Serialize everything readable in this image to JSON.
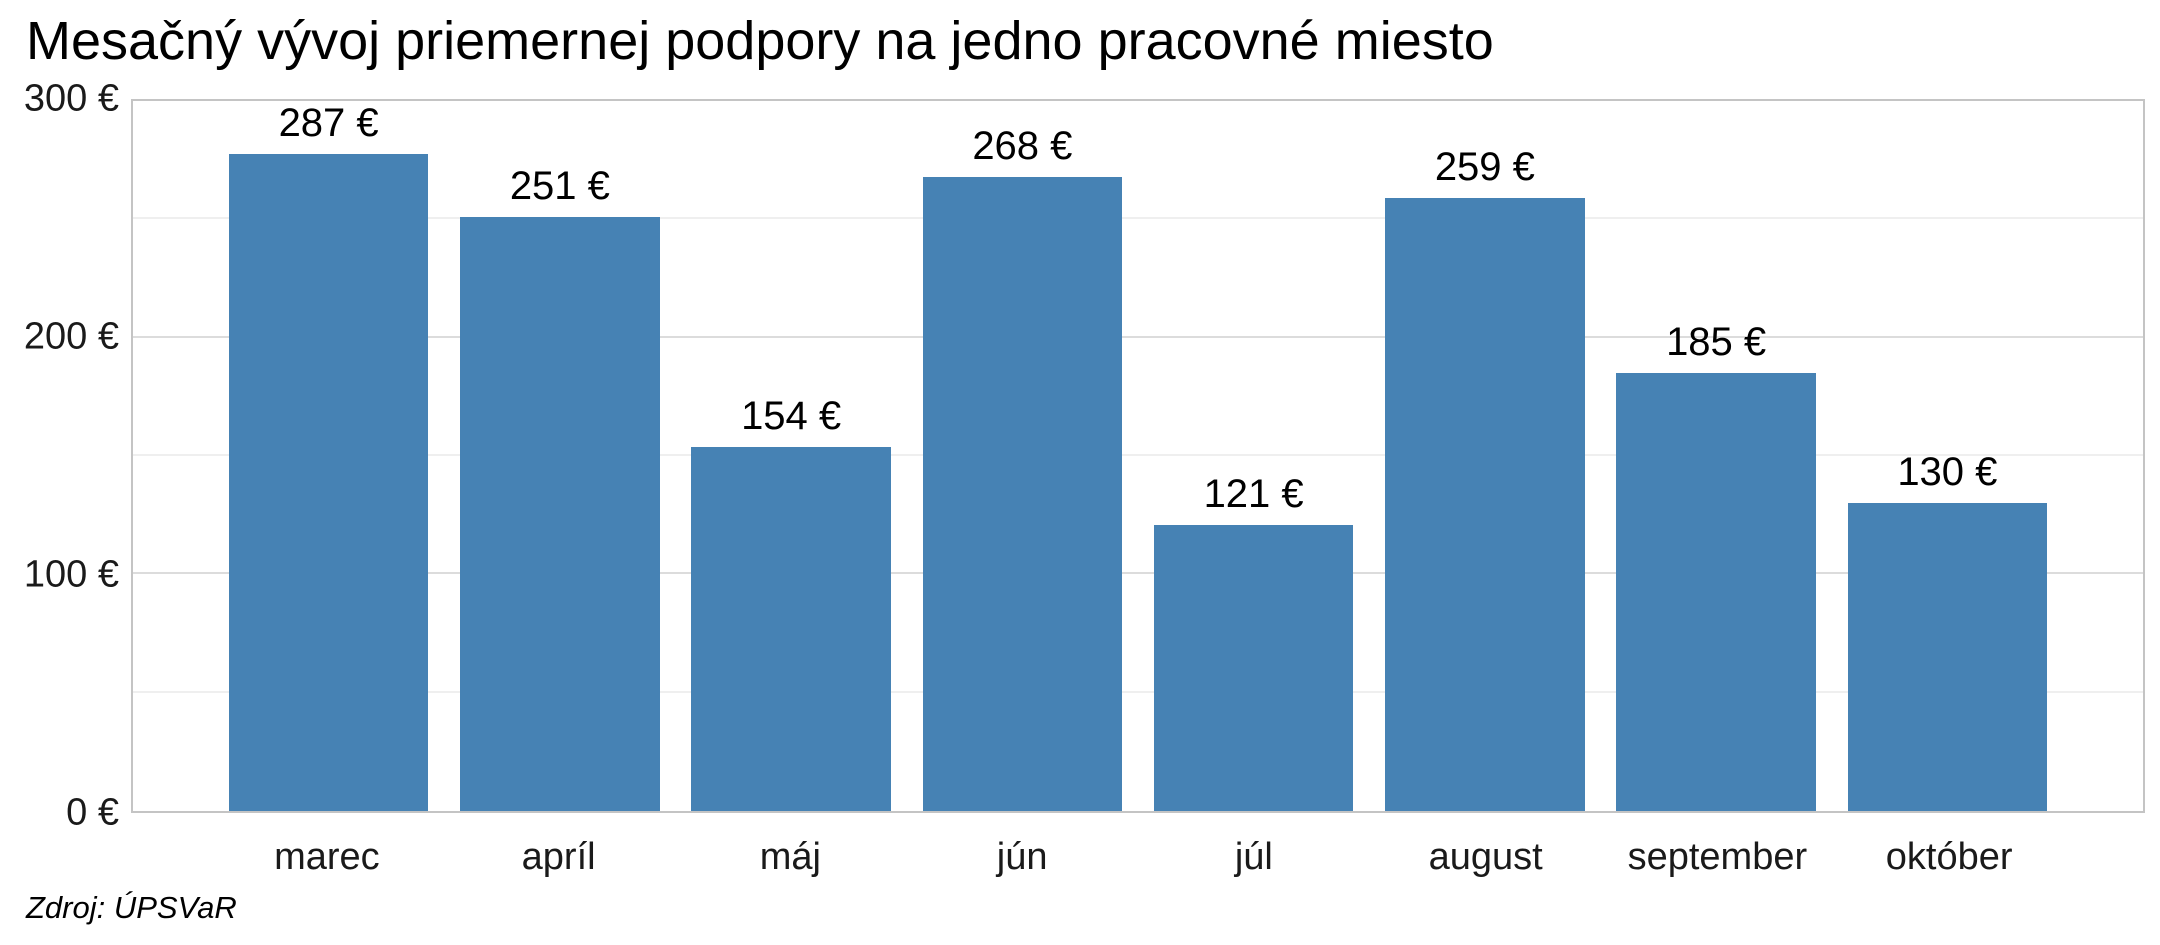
{
  "chart_data": {
    "type": "bar",
    "title": "Mesačný vývoj priemernej podpory na jedno pracovné miesto",
    "source": "Zdroj: ÚPSVaR",
    "categories": [
      "marec",
      "apríl",
      "máj",
      "jún",
      "júl",
      "august",
      "september",
      "október"
    ],
    "values": [
      287,
      251,
      154,
      268,
      121,
      259,
      185,
      130
    ],
    "value_labels": [
      "287 €",
      "251 €",
      "154 €",
      "268 €",
      "121 €",
      "259 €",
      "185 €",
      "130 €"
    ],
    "y_ticks": [
      {
        "value": 0,
        "label": "0 €"
      },
      {
        "value": 100,
        "label": "100 €"
      },
      {
        "value": 200,
        "label": "200 €"
      },
      {
        "value": 300,
        "label": "300 €"
      }
    ],
    "y_minor_ticks": [
      50,
      150,
      250
    ],
    "ylim": [
      0,
      300
    ],
    "xlabel": "",
    "ylabel": "",
    "bar_color": "#4682B4",
    "grid": "horizontal",
    "legend": "none"
  }
}
